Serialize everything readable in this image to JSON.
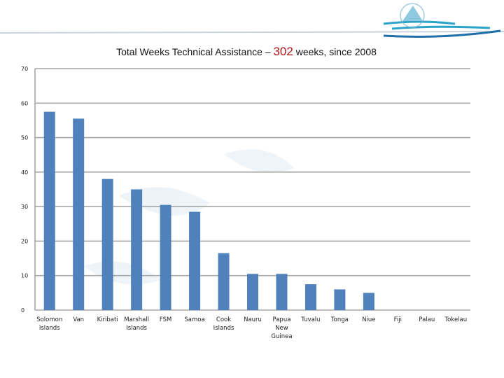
{
  "colors": {
    "bar": "#4f81bd",
    "grid": "#a6a6a6",
    "title_highlight": "#b01515",
    "logo_blue": "#2aa3c9"
  },
  "chart_data": {
    "type": "bar",
    "title": {
      "prefix": "Total Weeks Technical Assistance – ",
      "highlight": "302",
      "suffix": " weeks, since 2008"
    },
    "xlabel": "",
    "ylabel": "",
    "ylim": [
      0,
      70
    ],
    "yticks": [
      0,
      10,
      20,
      30,
      40,
      50,
      60,
      70
    ],
    "grid": true,
    "categories": [
      "Solomon Islands",
      "Van",
      "Kiribati",
      "Marshall Islands",
      "FSM",
      "Samoa",
      "Cook Islands",
      "Nauru",
      "Papua New Guinea",
      "Tuvalu",
      "Tonga",
      "Niue",
      "Fiji",
      "Palau",
      "Tokelau"
    ],
    "category_lines": [
      [
        "Solomon",
        "Islands"
      ],
      [
        "Van"
      ],
      [
        "Kiribati"
      ],
      [
        "Marshall",
        "Islands"
      ],
      [
        "FSM"
      ],
      [
        "Samoa"
      ],
      [
        "Cook",
        "Islands"
      ],
      [
        "Nauru"
      ],
      [
        "Papua",
        "New",
        "Guinea"
      ],
      [
        "Tuvalu"
      ],
      [
        "Tonga"
      ],
      [
        "Niue"
      ],
      [
        "Fiji"
      ],
      [
        "Palau"
      ],
      [
        "Tokelau"
      ]
    ],
    "values": [
      57.5,
      55.5,
      38,
      35,
      30.5,
      28.5,
      16.5,
      10.5,
      10.5,
      7.5,
      6,
      5,
      0,
      0,
      0
    ]
  }
}
